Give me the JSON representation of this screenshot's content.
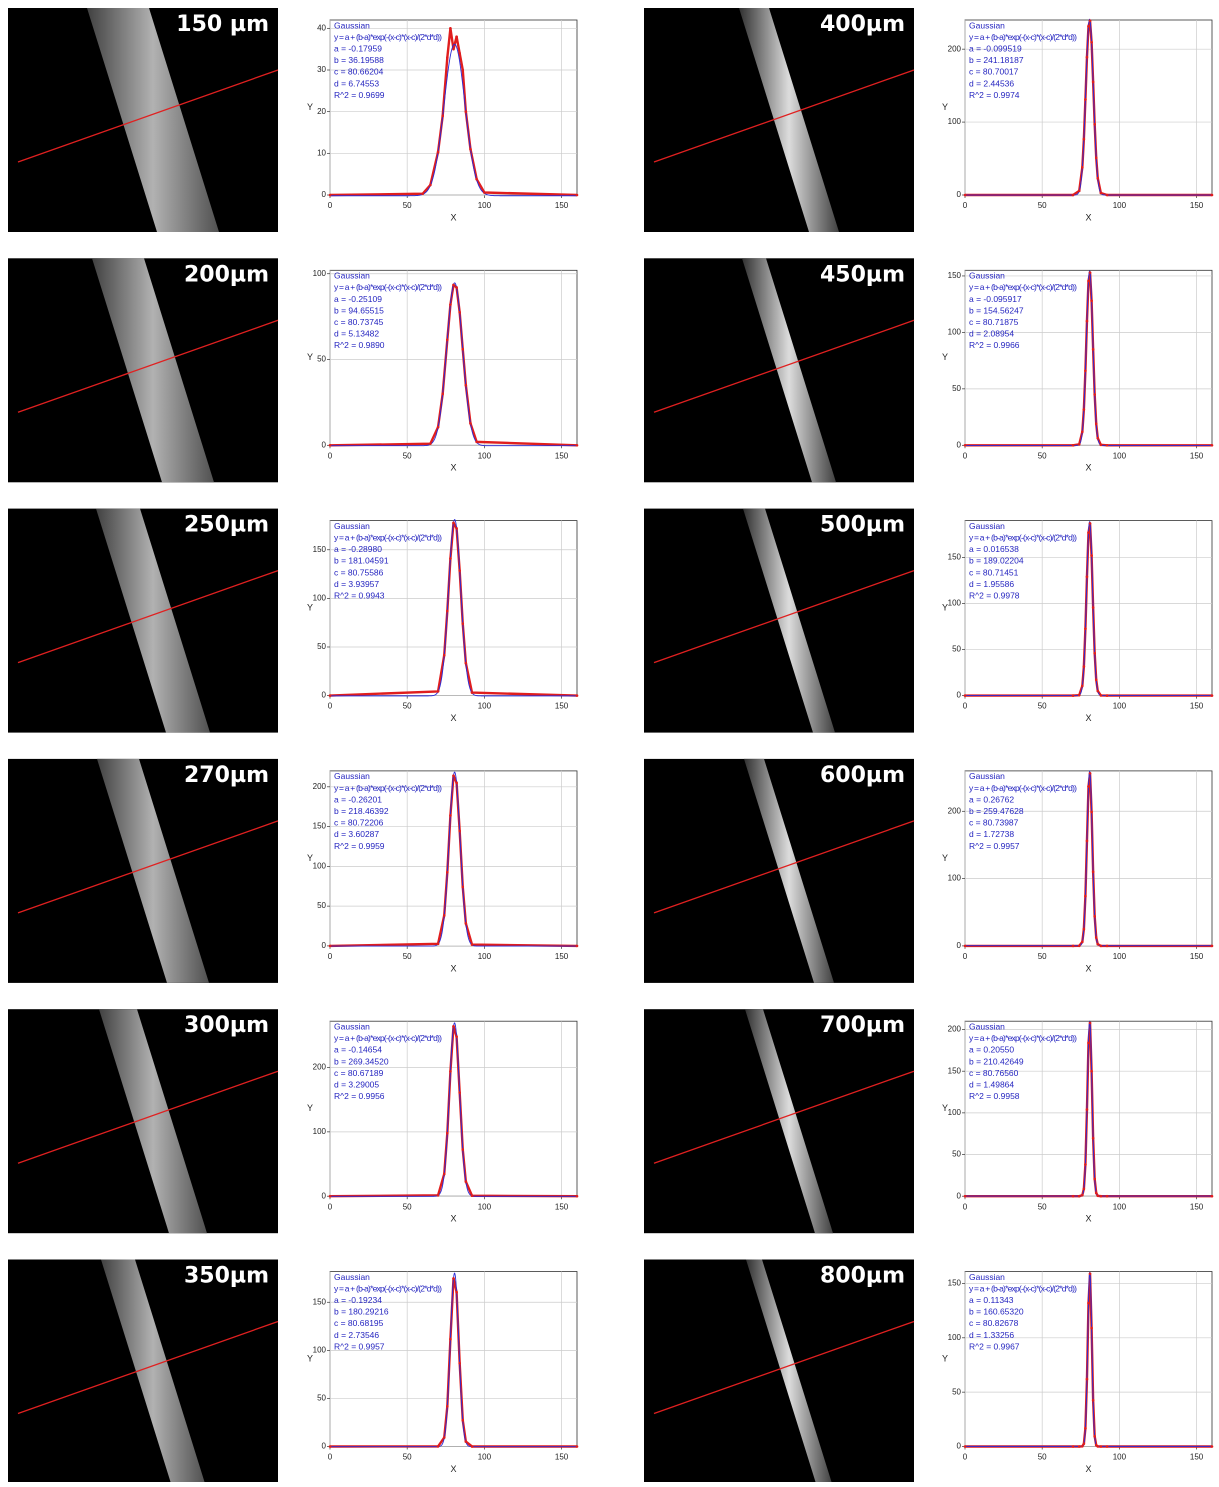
{
  "chart_data": [
    {
      "type": "line",
      "image_label": "150 µm",
      "legend_title": "Gaussian",
      "equation": "y = a + (b-a)*exp(-(x-c)*(x-c)/(2*d*d))",
      "fit": {
        "a": {
          "value": -0.17959,
          "label": "a = -0.17959"
        },
        "b": {
          "value": 36.19588,
          "label": "b = 36.19588"
        },
        "c": {
          "value": 80.66204,
          "label": "c = 80.66204"
        },
        "d": {
          "value": 6.74553,
          "label": "d = 6.74553"
        },
        "r2": {
          "value": 0.9699,
          "label": "R^2 = 0.9699"
        }
      },
      "xlabel": "X",
      "ylabel": "Y",
      "xlim": [
        0,
        160
      ],
      "ylim": [
        0,
        42
      ],
      "xticks": [
        0,
        50,
        100,
        150
      ],
      "yticks": [
        0,
        10,
        20,
        30,
        40
      ],
      "grid": true,
      "color": "#e01e1e",
      "fit_color": "#2a2ad6",
      "x": [
        0,
        60,
        65,
        70,
        73,
        76,
        78,
        80,
        82,
        84,
        86,
        88,
        91,
        95,
        100,
        160
      ],
      "values": [
        0,
        0.3,
        2.4,
        10.3,
        19,
        33,
        40,
        35,
        38,
        34,
        30,
        20,
        11,
        3.8,
        0.6,
        0
      ]
    },
    {
      "type": "line",
      "image_label": "200µm",
      "legend_title": "Gaussian",
      "equation": "y = a + (b-a)*exp(-(x-c)*(x-c)/(2*d*d))",
      "fit": {
        "a": {
          "value": -0.25109,
          "label": "a = -0.25109"
        },
        "b": {
          "value": 94.65515,
          "label": "b = 94.65515"
        },
        "c": {
          "value": 80.73745,
          "label": "c = 80.73745"
        },
        "d": {
          "value": 5.13482,
          "label": "d = 5.13482"
        },
        "r2": {
          "value": 0.989,
          "label": "R^2 = 0.9890"
        }
      },
      "xlabel": "X",
      "ylabel": "Y",
      "xlim": [
        0,
        160
      ],
      "ylim": [
        0,
        102
      ],
      "xticks": [
        0,
        50,
        100,
        150
      ],
      "yticks": [
        0,
        50,
        100
      ],
      "grid": true,
      "color": "#e01e1e",
      "fit_color": "#2a2ad6",
      "x": [
        0,
        65,
        70,
        73,
        76,
        78,
        80,
        82,
        84,
        86,
        88,
        91,
        95,
        160
      ],
      "values": [
        0,
        0.9,
        10.6,
        30,
        61.5,
        82,
        93.5,
        92,
        77.5,
        56,
        35,
        12.8,
        2,
        0
      ]
    },
    {
      "type": "line",
      "image_label": "250µm",
      "legend_title": "Gaussian",
      "equation": "y = a + (b-a)*exp(-(x-c)*(x-c)/(2*d*d))",
      "fit": {
        "a": {
          "value": -0.2898,
          "label": "a = -0.28980"
        },
        "b": {
          "value": 181.04591,
          "label": "b = 181.04591"
        },
        "c": {
          "value": 80.75586,
          "label": "c = 80.75586"
        },
        "d": {
          "value": 3.93957,
          "label": "d = 3.93957"
        },
        "r2": {
          "value": 0.9943,
          "label": "R^2 = 0.9943"
        }
      },
      "xlabel": "X",
      "ylabel": "Y",
      "xlim": [
        0,
        160
      ],
      "ylim": [
        0,
        180
      ],
      "xticks": [
        0,
        50,
        100,
        150
      ],
      "yticks": [
        0,
        50,
        100,
        150
      ],
      "grid": true,
      "color": "#e01e1e",
      "fit_color": "#2a2ad6",
      "x": [
        0,
        70,
        74,
        76,
        78,
        80,
        82,
        84,
        86,
        88,
        92,
        160
      ],
      "values": [
        0,
        4.3,
        41.6,
        87,
        141,
        177.7,
        172,
        128.5,
        74,
        33.4,
        3.1,
        0
      ]
    },
    {
      "type": "line",
      "image_label": "270µm",
      "legend_title": "Gaussian",
      "equation": "y = a + (b-a)*exp(-(x-c)*(x-c)/(2*d*d))",
      "fit": {
        "a": {
          "value": -0.26201,
          "label": "a = -0.26201"
        },
        "b": {
          "value": 218.46392,
          "label": "b = 218.46392"
        },
        "c": {
          "value": 80.72206,
          "label": "c = 80.72206"
        },
        "d": {
          "value": 3.60287,
          "label": "d = 3.60287"
        },
        "r2": {
          "value": 0.9959,
          "label": "R^2 = 0.9959"
        }
      },
      "xlabel": "X",
      "ylabel": "Y",
      "xlim": [
        0,
        160
      ],
      "ylim": [
        0,
        220
      ],
      "xticks": [
        0,
        50,
        100,
        150
      ],
      "yticks": [
        0,
        50,
        100,
        150,
        200
      ],
      "grid": true,
      "color": "#e01e1e",
      "fit_color": "#2a2ad6",
      "x": [
        0,
        70,
        74,
        76,
        78,
        80,
        82,
        84,
        86,
        88,
        92,
        160
      ],
      "values": [
        0,
        2.6,
        38.3,
        92.6,
        164,
        214,
        205,
        144.5,
        74.2,
        28.2,
        1.6,
        0
      ]
    },
    {
      "type": "line",
      "image_label": "300µm",
      "legend_title": "Gaussian",
      "equation": "y = a + (b-a)*exp(-(x-c)*(x-c)/(2*d*d))",
      "fit": {
        "a": {
          "value": -0.14654,
          "label": "a = -0.14654"
        },
        "b": {
          "value": 269.3452,
          "label": "b = 269.34520"
        },
        "c": {
          "value": 80.67189,
          "label": "c = 80.67189"
        },
        "d": {
          "value": 3.29005,
          "label": "d = 3.29005"
        },
        "r2": {
          "value": 0.9956,
          "label": "R^2 = 0.9956"
        }
      },
      "xlabel": "X",
      "ylabel": "Y",
      "xlim": [
        0,
        160
      ],
      "ylim": [
        0,
        272
      ],
      "xticks": [
        0,
        50,
        100,
        150
      ],
      "yticks": [
        0,
        100,
        200
      ],
      "grid": true,
      "color": "#e01e1e",
      "fit_color": "#2a2ad6",
      "x": [
        0,
        70,
        74,
        76,
        78,
        80,
        82,
        84,
        86,
        88,
        92,
        160
      ],
      "values": [
        0,
        1.4,
        34.6,
        98,
        194,
        264,
        248,
        161,
        72.6,
        22.6,
        0.7,
        0
      ]
    },
    {
      "type": "line",
      "image_label": "350µm",
      "legend_title": "Gaussian",
      "equation": "y = a + (b-a)*exp(-(x-c)*(x-c)/(2*d*d))",
      "fit": {
        "a": {
          "value": -0.19234,
          "label": "a = -0.19234"
        },
        "b": {
          "value": 180.29216,
          "label": "b = 180.29216"
        },
        "c": {
          "value": 80.68195,
          "label": "c = 80.68195"
        },
        "d": {
          "value": 2.73546,
          "label": "d = 2.73546"
        },
        "r2": {
          "value": 0.9957,
          "label": "R^2 = 0.9957"
        }
      },
      "xlabel": "X",
      "ylabel": "Y",
      "xlim": [
        0,
        160
      ],
      "ylim": [
        0,
        182
      ],
      "xticks": [
        0,
        50,
        100,
        150
      ],
      "yticks": [
        0,
        50,
        100,
        150
      ],
      "grid": true,
      "color": "#e01e1e",
      "fit_color": "#2a2ad6",
      "x": [
        0,
        70,
        74,
        76,
        78,
        80,
        82,
        84,
        86,
        88,
        92,
        160
      ],
      "values": [
        0,
        0.1,
        9.3,
        41.8,
        111.7,
        174.8,
        160.5,
        86.7,
        27.3,
        5.1,
        0,
        0
      ]
    },
    {
      "type": "line",
      "image_label": "400µm",
      "legend_title": "Gaussian",
      "equation": "y = a + (b-a)*exp(-(x-c)*(x-c)/(2*d*d))",
      "fit": {
        "a": {
          "value": -0.099519,
          "label": "a = -0.099519"
        },
        "b": {
          "value": 241.18187,
          "label": "b = 241.18187"
        },
        "c": {
          "value": 80.70017,
          "label": "c = 80.70017"
        },
        "d": {
          "value": 2.44536,
          "label": "d = 2.44536"
        },
        "r2": {
          "value": 0.9974,
          "label": "R^2 = 0.9974"
        }
      },
      "xlabel": "X",
      "ylabel": "Y",
      "xlim": [
        0,
        160
      ],
      "ylim": [
        0,
        240
      ],
      "xticks": [
        0,
        50,
        100,
        150
      ],
      "yticks": [
        0,
        100,
        200
      ],
      "grid": true,
      "color": "#e01e1e",
      "fit_color": "#2a2ad6",
      "x": [
        0,
        70,
        74,
        76,
        77,
        78,
        79,
        80,
        81,
        82,
        83,
        84,
        85,
        86,
        88,
        92,
        160
      ],
      "values": [
        0,
        0,
        5.7,
        38,
        76.7,
        131,
        189,
        231.5,
        239,
        209.5,
        155,
        97,
        51,
        23,
        2.8,
        0,
        0
      ]
    },
    {
      "type": "line",
      "image_label": "450µm",
      "legend_title": "Gaussian",
      "equation": "y = a + (b-a)*exp(-(x-c)*(x-c)/(2*d*d))",
      "fit": {
        "a": {
          "value": -0.095917,
          "label": "a = -0.095917"
        },
        "b": {
          "value": 154.56247,
          "label": "b = 154.56247"
        },
        "c": {
          "value": 80.71875,
          "label": "c = 80.71875"
        },
        "d": {
          "value": 2.08954,
          "label": "d = 2.08954"
        },
        "r2": {
          "value": 0.9966,
          "label": "R^2 = 0.9966"
        }
      },
      "xlabel": "X",
      "ylabel": "Y",
      "xlim": [
        0,
        160
      ],
      "ylim": [
        0,
        155
      ],
      "xticks": [
        0,
        50,
        100,
        150
      ],
      "yticks": [
        0,
        50,
        100,
        150
      ],
      "grid": true,
      "color": "#e01e1e",
      "fit_color": "#2a2ad6",
      "x": [
        0,
        70,
        74,
        76,
        77,
        78,
        79,
        80,
        81,
        82,
        83,
        84,
        85,
        86,
        88,
        92,
        160
      ],
      "values": [
        0,
        0,
        0.9,
        12,
        31.7,
        66,
        110,
        145.6,
        153,
        128,
        85,
        45,
        19,
        6.3,
        0.4,
        0,
        0
      ]
    },
    {
      "type": "line",
      "image_label": "500µm",
      "legend_title": "Gaussian",
      "equation": "y = a + (b-a)*exp(-(x-c)*(x-c)/(2*d*d))",
      "fit": {
        "a": {
          "value": 0.016538,
          "label": "a = 0.016538"
        },
        "b": {
          "value": 189.02204,
          "label": "b = 189.02204"
        },
        "c": {
          "value": 80.71451,
          "label": "c = 80.71451"
        },
        "d": {
          "value": 1.95586,
          "label": "d = 1.95586"
        },
        "r2": {
          "value": 0.9978,
          "label": "R^2 = 0.9978"
        }
      },
      "xlabel": "X",
      "ylabel": "Y",
      "xlim": [
        0,
        160
      ],
      "ylim": [
        0,
        190
      ],
      "xticks": [
        0,
        50,
        100,
        150
      ],
      "yticks": [
        0,
        50,
        100,
        150
      ],
      "grid": true,
      "color": "#e01e1e",
      "fit_color": "#2a2ad6",
      "x": [
        0,
        70,
        74,
        76,
        77,
        78,
        79,
        80,
        81,
        82,
        83,
        84,
        85,
        86,
        88,
        92,
        160
      ],
      "values": [
        0,
        0,
        0.5,
        10.5,
        31.5,
        72.6,
        129,
        177,
        187,
        152,
        95.6,
        46,
        17.2,
        5,
        0.2,
        0,
        0
      ]
    },
    {
      "type": "line",
      "image_label": "600µm",
      "legend_title": "Gaussian",
      "equation": "y = a + (b-a)*exp(-(x-c)*(x-c)/(2*d*d))",
      "fit": {
        "a": {
          "value": 0.26762,
          "label": "a = 0.26762"
        },
        "b": {
          "value": 259.47628,
          "label": "b = 259.47628"
        },
        "c": {
          "value": 80.73987,
          "label": "c = 80.73987"
        },
        "d": {
          "value": 1.72738,
          "label": "d = 1.72738"
        },
        "r2": {
          "value": 0.9957,
          "label": "R^2 = 0.9957"
        }
      },
      "xlabel": "X",
      "ylabel": "Y",
      "xlim": [
        0,
        160
      ],
      "ylim": [
        0,
        260
      ],
      "xticks": [
        0,
        50,
        100,
        150
      ],
      "yticks": [
        0,
        100,
        200
      ],
      "grid": true,
      "color": "#e01e1e",
      "fit_color": "#2a2ad6",
      "x": [
        0,
        70,
        74,
        76,
        77,
        78,
        79,
        80,
        81,
        82,
        83,
        84,
        85,
        86,
        88,
        92,
        160
      ],
      "values": [
        0,
        0,
        0.1,
        6,
        25,
        74,
        156,
        237,
        256.5,
        199,
        110,
        44,
        12.4,
        2.5,
        0,
        0,
        0
      ]
    },
    {
      "type": "line",
      "image_label": "700µm",
      "legend_title": "Gaussian",
      "equation": "y = a + (b-a)*exp(-(x-c)*(x-c)/(2*d*d))",
      "fit": {
        "a": {
          "value": 0.2055,
          "label": "a = 0.20550"
        },
        "b": {
          "value": 210.42649,
          "label": "b = 210.42649"
        },
        "c": {
          "value": 80.7656,
          "label": "c = 80.76560"
        },
        "d": {
          "value": 1.49864,
          "label": "d = 1.49864"
        },
        "r2": {
          "value": 0.9958,
          "label": "R^2 = 0.9958"
        }
      },
      "xlabel": "X",
      "ylabel": "Y",
      "xlim": [
        0,
        160
      ],
      "ylim": [
        0,
        210
      ],
      "xticks": [
        0,
        50,
        100,
        150
      ],
      "yticks": [
        0,
        50,
        100,
        150,
        200
      ],
      "grid": true,
      "color": "#e01e1e",
      "fit_color": "#2a2ad6",
      "x": [
        0,
        70,
        74,
        76,
        77,
        78,
        79,
        80,
        81,
        82,
        83,
        84,
        85,
        86,
        88,
        92,
        160
      ],
      "values": [
        0,
        0,
        0,
        1.3,
        8.8,
        38,
        104,
        184,
        208,
        150,
        69.6,
        20.7,
        3.9,
        0.5,
        0,
        0,
        0
      ]
    },
    {
      "type": "line",
      "image_label": "800µm",
      "legend_title": "Gaussian",
      "equation": "y = a + (b-a)*exp(-(x-c)*(x-c)/(2*d*d))",
      "fit": {
        "a": {
          "value": 0.11343,
          "label": "a = 0.11343"
        },
        "b": {
          "value": 160.6532,
          "label": "b = 160.65320"
        },
        "c": {
          "value": 80.82678,
          "label": "c = 80.82678"
        },
        "d": {
          "value": 1.33256,
          "label": "d = 1.33256"
        },
        "r2": {
          "value": 0.9967,
          "label": "R^2 = 0.9967"
        }
      },
      "xlabel": "X",
      "ylabel": "Y",
      "xlim": [
        0,
        160
      ],
      "ylim": [
        0,
        161
      ],
      "xticks": [
        0,
        50,
        100,
        150
      ],
      "yticks": [
        0,
        50,
        100,
        150
      ],
      "grid": true,
      "color": "#e01e1e",
      "fit_color": "#2a2ad6",
      "x": [
        0,
        70,
        74,
        76,
        77,
        78,
        79,
        80,
        81,
        82,
        83,
        84,
        85,
        86,
        88,
        92,
        160
      ],
      "values": [
        0,
        0,
        0,
        0.2,
        2.5,
        16.7,
        62,
        132,
        159,
        109,
        42.5,
        9.4,
        1.2,
        0.1,
        0,
        0,
        0
      ]
    }
  ]
}
